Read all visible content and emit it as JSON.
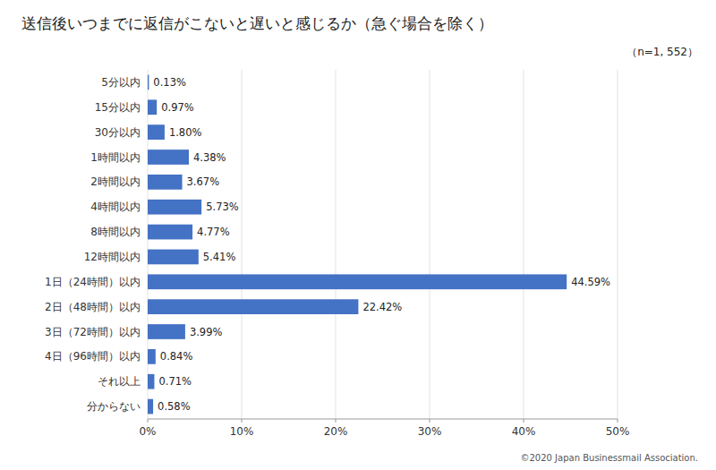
{
  "chart_data": {
    "type": "bar",
    "orientation": "horizontal",
    "title": "送信後いつまでに返信がこないと遅いと感じるか（急ぐ場合を除く）",
    "annotations": [
      "（n=1, 552）",
      "©2020 Japan Businessmail Association."
    ],
    "categories": [
      "5分以内",
      "15分以内",
      "30分以内",
      "1時間以内",
      "2時間以内",
      "4時間以内",
      "8時間以内",
      "12時間以内",
      "1日（24時間）以内",
      "2日（48時間）以内",
      "3日（72時間）以内",
      "4日（96時間）以内",
      "それ以上",
      "分からない"
    ],
    "values": [
      0.13,
      0.97,
      1.8,
      4.38,
      3.67,
      5.73,
      4.77,
      5.41,
      44.59,
      22.42,
      3.99,
      0.84,
      0.71,
      0.58
    ],
    "value_labels": [
      "0.13%",
      "0.97%",
      "1.80%",
      "4.38%",
      "3.67%",
      "5.73%",
      "4.77%",
      "5.41%",
      "44.59%",
      "22.42%",
      "3.99%",
      "0.84%",
      "0.71%",
      "0.58%"
    ],
    "data_labels": true,
    "color": "#4472C4",
    "xlim": [
      0,
      50
    ],
    "xticks": [
      {
        "value": 0,
        "label": "0%"
      },
      {
        "value": 10,
        "label": "10%"
      },
      {
        "value": 20,
        "label": "20%"
      },
      {
        "value": 30,
        "label": "30%"
      },
      {
        "value": 40,
        "label": "40%"
      },
      {
        "value": 50,
        "label": "50%"
      }
    ],
    "grid": true
  }
}
